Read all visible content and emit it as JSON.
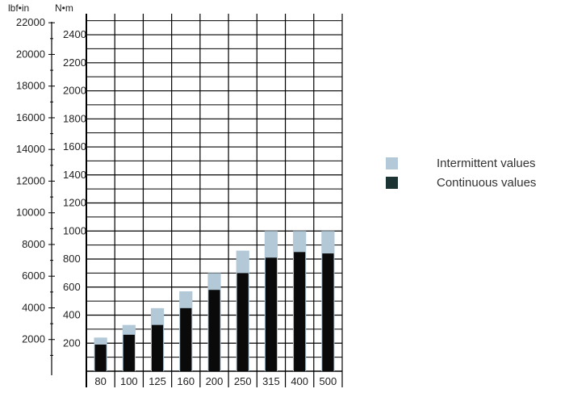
{
  "chart_data": {
    "type": "bar",
    "units": {
      "left": "lbf•in",
      "right": "N•m"
    },
    "categories": [
      "80",
      "100",
      "125",
      "160",
      "200",
      "250",
      "315",
      "400",
      "500"
    ],
    "series": [
      {
        "name": "Intermittent values",
        "values": [
          240,
          330,
          450,
          570,
          700,
          860,
          1000,
          1000,
          1000
        ]
      },
      {
        "name": "Continuous values",
        "values": [
          190,
          260,
          330,
          450,
          580,
          700,
          810,
          850,
          840
        ]
      }
    ],
    "right_axis": {
      "unit": "N•m",
      "ylim": [
        0,
        2550
      ],
      "ticks": [
        200,
        400,
        600,
        800,
        1000,
        1200,
        1400,
        1600,
        1800,
        2000,
        2200,
        2400
      ]
    },
    "left_axis": {
      "unit": "lbf•in",
      "ticks": [
        2000,
        4000,
        6000,
        8000,
        10000,
        12000,
        14000,
        16000,
        18000,
        20000,
        22000
      ]
    },
    "grid": true,
    "legend_position": "right",
    "colors": {
      "intermittent": "#b3c9d8",
      "continuous": "#0a0a0a",
      "continuous_swatch": "#1c3333",
      "grid": "#000000"
    }
  },
  "legend": [
    {
      "label": "Intermittent values",
      "color": "#b3c9d8"
    },
    {
      "label": "Continuous values",
      "color": "#1c3333"
    }
  ]
}
